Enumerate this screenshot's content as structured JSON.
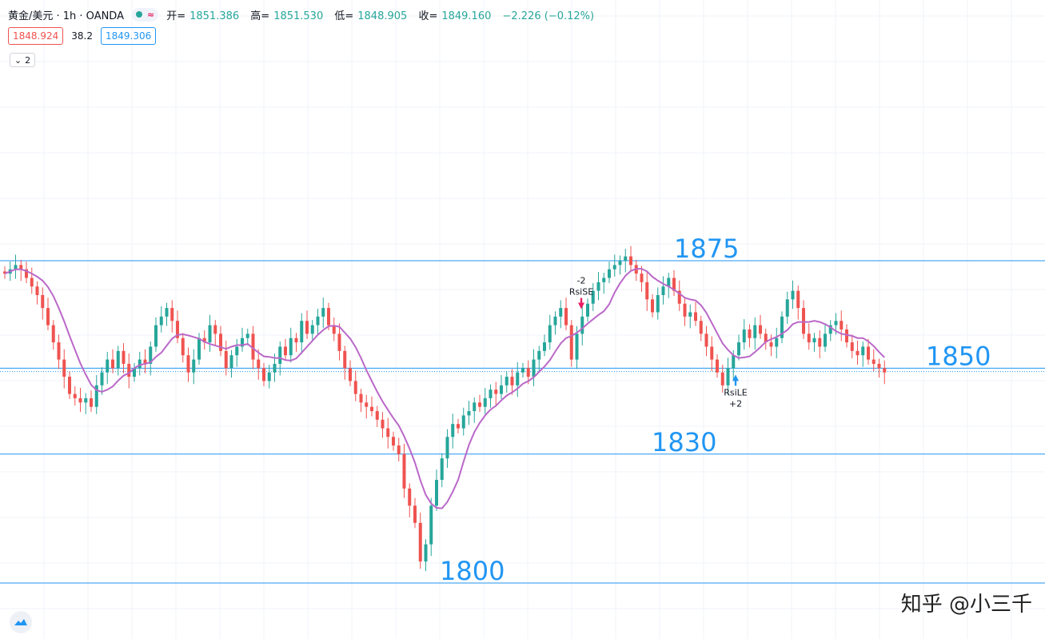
{
  "header": {
    "symbol": "黄金/美元 · 1h · OANDA",
    "status_wave": "≈",
    "open_label": "开=",
    "open": "1851.386",
    "high_label": "高=",
    "high": "1851.530",
    "low_label": "低=",
    "low": "1848.905",
    "close_label": "收=",
    "close": "1849.160",
    "change": "−2.226 (−0.12%)"
  },
  "trade": {
    "sell": "1848.924",
    "spread": "38.2",
    "buy": "1849.306"
  },
  "collapse_count": "2",
  "watermark": "知乎 @小三千",
  "colors": {
    "up": "#26a69a",
    "down": "#ef5350",
    "ma": "#ba68c8",
    "level": "#2196f3"
  },
  "chart_data": {
    "type": "candlestick",
    "price_range": [
      1795,
      1885
    ],
    "grid": true,
    "levels": [
      {
        "value": 1875,
        "label": "1875"
      },
      {
        "value": 1850,
        "label": "1850"
      },
      {
        "value": 1830,
        "label": "1830"
      },
      {
        "value": 1800,
        "label": "1800"
      }
    ],
    "signals": [
      {
        "label_top": "-2",
        "label": "RsiSE",
        "type": "sell",
        "price": 1863
      },
      {
        "label": "RsiLE",
        "label_bottom": "+2",
        "type": "buy",
        "price": 1850
      }
    ],
    "close_series": [
      1872,
      1873,
      1874,
      1873,
      1871,
      1869,
      1867,
      1864,
      1860,
      1856,
      1852,
      1848,
      1844,
      1843,
      1842,
      1843,
      1841,
      1846,
      1849,
      1852,
      1850,
      1854,
      1851,
      1848,
      1850,
      1852,
      1851,
      1855,
      1860,
      1862,
      1864,
      1861,
      1857,
      1853,
      1849,
      1852,
      1857,
      1856,
      1860,
      1858,
      1854,
      1850,
      1853,
      1855,
      1857,
      1858,
      1852,
      1850,
      1847,
      1849,
      1851,
      1855,
      1853,
      1857,
      1856,
      1861,
      1858,
      1860,
      1862,
      1864,
      1860,
      1858,
      1854,
      1850,
      1847,
      1844,
      1842,
      1841,
      1840,
      1838,
      1836,
      1834,
      1832,
      1830,
      1822,
      1818,
      1814,
      1805,
      1809,
      1818,
      1824,
      1829,
      1834,
      1837,
      1836,
      1839,
      1840,
      1842,
      1841,
      1843,
      1845,
      1844,
      1846,
      1848,
      1846,
      1849,
      1850,
      1848,
      1852,
      1854,
      1856,
      1860,
      1862,
      1864,
      1860,
      1852,
      1858,
      1862,
      1865,
      1868,
      1870,
      1871,
      1873,
      1874,
      1875,
      1876,
      1874,
      1872,
      1870,
      1866,
      1863,
      1867,
      1869,
      1871,
      1868,
      1865,
      1862,
      1863,
      1861,
      1858,
      1855,
      1852,
      1849,
      1846,
      1850,
      1853,
      1856,
      1859,
      1857,
      1860,
      1858,
      1856,
      1855,
      1857,
      1862,
      1866,
      1868,
      1864,
      1858,
      1856,
      1857,
      1855,
      1858,
      1860,
      1861,
      1859,
      1856,
      1854,
      1853,
      1855,
      1852,
      1851,
      1850,
      1849
    ]
  }
}
